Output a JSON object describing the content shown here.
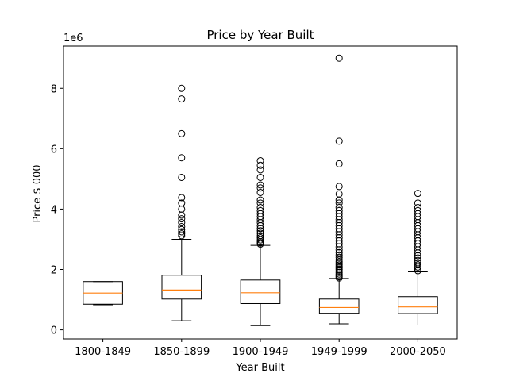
{
  "chart_data": {
    "type": "boxplot",
    "title": "Price by Year Built",
    "xlabel": "Year Built",
    "ylabel": "Price $ 000",
    "y_offset_label": "1e6",
    "y_scale": 1000000,
    "ylim": [
      -300000,
      9400000
    ],
    "yticks": [
      0,
      2000000,
      4000000,
      6000000,
      8000000
    ],
    "ytick_labels": [
      "0",
      "2",
      "4",
      "6",
      "8"
    ],
    "grid": false,
    "legend": "none",
    "colors": {
      "box": "#000000",
      "median": "#ff7f0e",
      "background": "#ffffff"
    },
    "categories": [
      "1800-1849",
      "1850-1899",
      "1900-1949",
      "1949-1999",
      "2000-2050"
    ],
    "boxes": [
      {
        "category": "1800-1849",
        "whisker_low": 830000,
        "q1": 850000,
        "median": 1220000,
        "q3": 1600000,
        "whisker_high": 1600000,
        "outliers": []
      },
      {
        "category": "1850-1899",
        "whisker_low": 300000,
        "q1": 1020000,
        "median": 1320000,
        "q3": 1810000,
        "whisker_high": 3000000,
        "outliers": [
          3120000,
          3180000,
          3250000,
          3320000,
          3420000,
          3550000,
          3680000,
          3800000,
          4000000,
          4200000,
          4380000,
          5050000,
          5700000,
          6500000,
          7650000,
          8000000
        ]
      },
      {
        "category": "1900-1949",
        "whisker_low": 140000,
        "q1": 870000,
        "median": 1230000,
        "q3": 1650000,
        "whisker_high": 2800000,
        "outliers": [
          2840000,
          2880000,
          2920000,
          2980000,
          3050000,
          3120000,
          3200000,
          3280000,
          3360000,
          3450000,
          3550000,
          3650000,
          3750000,
          3850000,
          3950000,
          4050000,
          4200000,
          4300000,
          4550000,
          4700000,
          4800000,
          5050000,
          5300000,
          5450000,
          5600000
        ]
      },
      {
        "category": "1949-1999",
        "whisker_low": 200000,
        "q1": 550000,
        "median": 740000,
        "q3": 1020000,
        "whisker_high": 1700000,
        "outliers": [
          1720000,
          1760000,
          1800000,
          1850000,
          1900000,
          1950000,
          2000000,
          2050000,
          2100000,
          2150000,
          2200000,
          2250000,
          2320000,
          2400000,
          2480000,
          2560000,
          2650000,
          2750000,
          2850000,
          2950000,
          3050000,
          3150000,
          3250000,
          3350000,
          3450000,
          3550000,
          3650000,
          3750000,
          3850000,
          3950000,
          4050000,
          4200000,
          4300000,
          4500000,
          4750000,
          5500000,
          6250000,
          9000000
        ]
      },
      {
        "category": "2000-2050",
        "whisker_low": 160000,
        "q1": 540000,
        "median": 760000,
        "q3": 1100000,
        "whisker_high": 1920000,
        "outliers": [
          1960000,
          2020000,
          2080000,
          2150000,
          2220000,
          2300000,
          2380000,
          2460000,
          2550000,
          2650000,
          2750000,
          2850000,
          2950000,
          3050000,
          3150000,
          3250000,
          3350000,
          3450000,
          3550000,
          3650000,
          3750000,
          3850000,
          3950000,
          4050000,
          4200000,
          4520000
        ]
      }
    ]
  }
}
